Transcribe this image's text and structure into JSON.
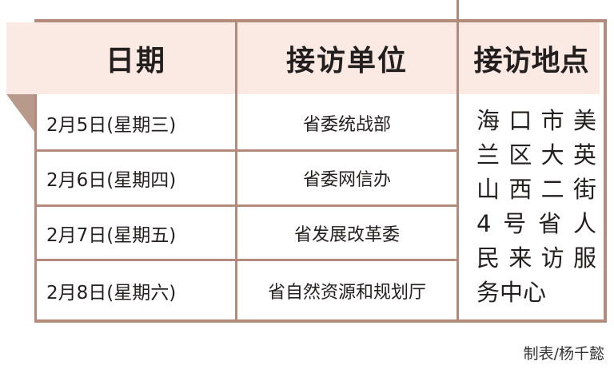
{
  "colors": {
    "border": "#b48b7a",
    "header_bg": "#fbe9e4",
    "fold": "#b9998c"
  },
  "table": {
    "headers": [
      "日期",
      "接访单位",
      "接访地点"
    ],
    "rows": [
      {
        "date": "2月5日(星期三)",
        "unit": "省委统战部"
      },
      {
        "date": "2月6日(星期四)",
        "unit": "省委网信办"
      },
      {
        "date": "2月7日(星期五)",
        "unit": "省发展改革委"
      },
      {
        "date": "2月8日(星期六)",
        "unit": "省自然资源和规划厅"
      }
    ],
    "location_lines": [
      "海口市美",
      "兰区大英",
      "山西二街",
      "4号省人",
      "民来访服",
      "务中心"
    ]
  },
  "footer": "制表/杨千懿"
}
